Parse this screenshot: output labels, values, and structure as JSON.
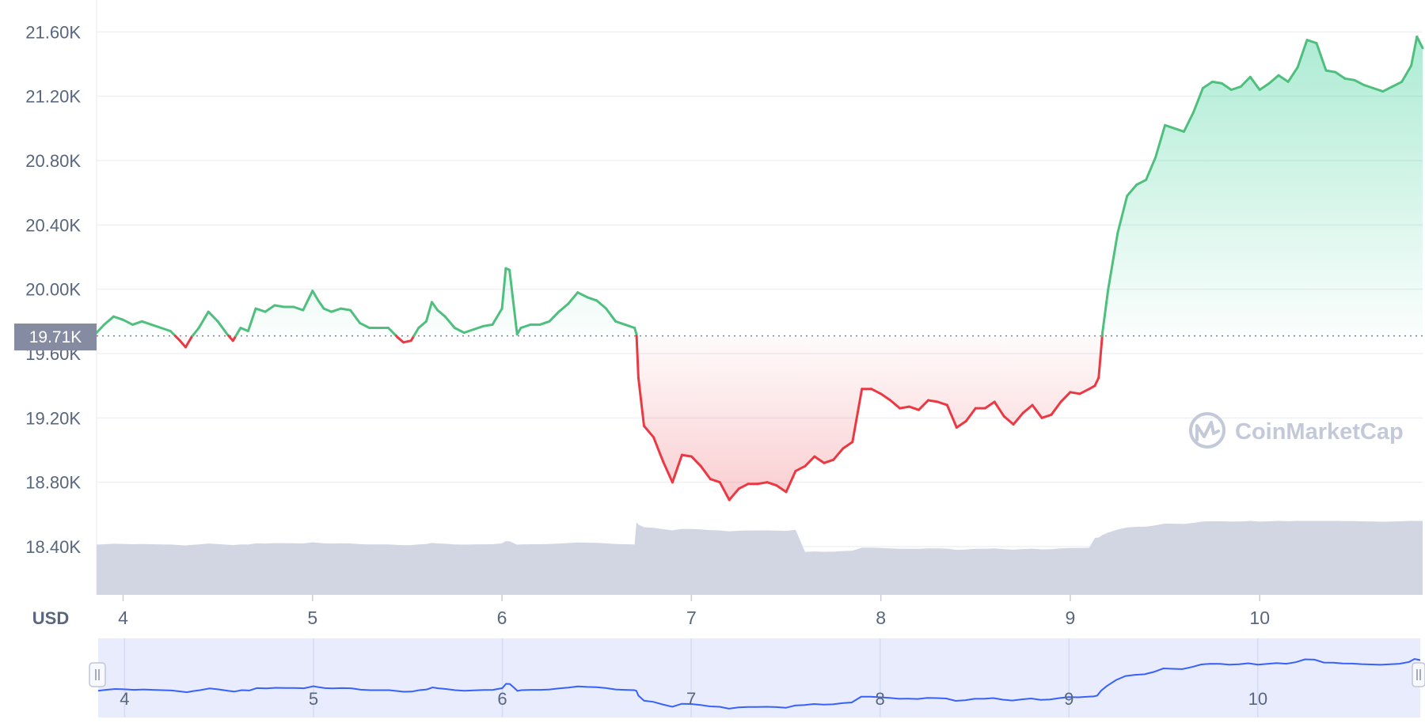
{
  "chart_data": {
    "type": "area",
    "currency_unit": "USD",
    "brand": "CoinMarketCap",
    "reference_price_label": "19.71K",
    "reference_price": 19710,
    "ylim": [
      18100,
      21700
    ],
    "y_ticks": [
      {
        "value": 18400,
        "label": "18.40K"
      },
      {
        "value": 18800,
        "label": "18.80K"
      },
      {
        "value": 19200,
        "label": "19.20K"
      },
      {
        "value": 19600,
        "label": "19.60K"
      },
      {
        "value": 20000,
        "label": "20.00K"
      },
      {
        "value": 20400,
        "label": "20.40K"
      },
      {
        "value": 20800,
        "label": "20.80K"
      },
      {
        "value": 21200,
        "label": "21.20K"
      },
      {
        "value": 21600,
        "label": "21.60K"
      }
    ],
    "xlim": [
      3.86,
      10.86
    ],
    "x_ticks": [
      "4",
      "5",
      "6",
      "7",
      "8",
      "9",
      "10"
    ],
    "grid": true,
    "colors": {
      "up": "#16c784",
      "up_line": "#4fbf7d",
      "down_line": "#ea3943",
      "volume": "#d2d6e3",
      "navigator_line": "#3861fb",
      "navigator_bg": "#e8ecfd"
    },
    "series": [
      {
        "x": [
          3.86,
          3.9,
          3.95,
          4.0,
          4.05,
          4.1,
          4.15,
          4.2,
          4.25,
          4.3,
          4.33,
          4.36,
          4.4,
          4.45,
          4.5,
          4.55,
          4.58,
          4.62,
          4.66,
          4.7,
          4.75,
          4.8,
          4.85,
          4.9,
          4.95,
          5.0,
          5.03,
          5.06,
          5.1,
          5.15,
          5.2,
          5.25,
          5.3,
          5.35,
          5.4,
          5.45,
          5.48,
          5.52,
          5.56,
          5.6,
          5.63,
          5.66,
          5.7,
          5.75,
          5.8,
          5.85,
          5.9,
          5.95,
          6.0,
          6.02,
          6.04,
          6.06,
          6.08,
          6.1,
          6.15,
          6.2,
          6.25,
          6.3,
          6.35,
          6.4,
          6.45,
          6.5,
          6.55,
          6.6,
          6.65,
          6.7,
          6.71,
          6.72,
          6.75,
          6.8,
          6.85,
          6.9,
          6.95,
          7.0,
          7.05,
          7.1,
          7.15,
          7.2,
          7.25,
          7.3,
          7.35,
          7.4,
          7.45,
          7.5,
          7.55,
          7.6,
          7.65,
          7.7,
          7.75,
          7.8,
          7.85,
          7.9,
          7.95,
          8.0,
          8.05,
          8.1,
          8.15,
          8.2,
          8.25,
          8.3,
          8.35,
          8.4,
          8.45,
          8.5,
          8.55,
          8.6,
          8.65,
          8.7,
          8.75,
          8.8,
          8.85,
          8.9,
          8.95,
          9.0,
          9.05,
          9.1,
          9.13,
          9.15,
          9.17,
          9.2,
          9.25,
          9.3,
          9.35,
          9.4,
          9.45,
          9.5,
          9.55,
          9.6,
          9.65,
          9.7,
          9.75,
          9.8,
          9.85,
          9.9,
          9.95,
          10.0,
          10.05,
          10.1,
          10.15,
          10.2,
          10.25,
          10.3,
          10.35,
          10.4,
          10.45,
          10.5,
          10.55,
          10.6,
          10.65,
          10.7,
          10.75,
          10.8,
          10.83,
          10.86
        ],
        "values": [
          19730,
          19780,
          19830,
          19810,
          19780,
          19800,
          19780,
          19760,
          19740,
          19680,
          19640,
          19700,
          19760,
          19860,
          19800,
          19720,
          19680,
          19760,
          19740,
          19880,
          19860,
          19900,
          19890,
          19890,
          19870,
          19990,
          19930,
          19880,
          19860,
          19880,
          19870,
          19790,
          19760,
          19760,
          19760,
          19700,
          19670,
          19680,
          19760,
          19800,
          19920,
          19870,
          19830,
          19760,
          19730,
          19750,
          19770,
          19780,
          19880,
          20130,
          20120,
          19920,
          19720,
          19760,
          19780,
          19780,
          19800,
          19860,
          19910,
          19980,
          19950,
          19930,
          19880,
          19800,
          19780,
          19760,
          19720,
          19450,
          19150,
          19080,
          18930,
          18800,
          18970,
          18960,
          18900,
          18820,
          18800,
          18690,
          18760,
          18790,
          18790,
          18800,
          18780,
          18740,
          18870,
          18900,
          18960,
          18920,
          18940,
          19010,
          19050,
          19380,
          19380,
          19350,
          19310,
          19260,
          19270,
          19250,
          19310,
          19300,
          19280,
          19140,
          19180,
          19260,
          19260,
          19300,
          19210,
          19160,
          19230,
          19280,
          19200,
          19220,
          19300,
          19360,
          19350,
          19380,
          19400,
          19450,
          19730,
          20000,
          20350,
          20580,
          20650,
          20680,
          20820,
          21020,
          21000,
          20980,
          21100,
          21250,
          21290,
          21280,
          21240,
          21260,
          21320,
          21240,
          21280,
          21330,
          21290,
          21380,
          21550,
          21530,
          21360,
          21350,
          21310,
          21300,
          21270,
          21250,
          21230,
          21260,
          21290,
          21390,
          21570,
          21500
        ]
      }
    ],
    "navigator": {
      "x_ticks": [
        "4",
        "5",
        "6",
        "7",
        "8",
        "9",
        "10"
      ]
    }
  }
}
